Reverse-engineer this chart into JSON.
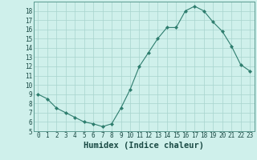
{
  "xlabel": "Humidex (Indice chaleur)",
  "x": [
    0,
    1,
    2,
    3,
    4,
    5,
    6,
    7,
    8,
    9,
    10,
    11,
    12,
    13,
    14,
    15,
    16,
    17,
    18,
    19,
    20,
    21,
    22,
    23
  ],
  "y": [
    9.0,
    8.5,
    7.5,
    7.0,
    6.5,
    6.0,
    5.8,
    5.5,
    5.8,
    7.5,
    9.5,
    12.0,
    13.5,
    15.0,
    16.2,
    16.2,
    18.0,
    18.5,
    18.0,
    16.8,
    15.8,
    14.2,
    12.2,
    11.5
  ],
  "line_color": "#2e7d6e",
  "marker": "D",
  "markersize": 2.0,
  "linewidth": 0.8,
  "bg_color": "#cff0eb",
  "grid_color": "#a8d4ce",
  "ylim": [
    5,
    19
  ],
  "xlim": [
    -0.5,
    23.5
  ],
  "yticks": [
    5,
    6,
    7,
    8,
    9,
    10,
    11,
    12,
    13,
    14,
    15,
    16,
    17,
    18
  ],
  "xticks": [
    0,
    1,
    2,
    3,
    4,
    5,
    6,
    7,
    8,
    9,
    10,
    11,
    12,
    13,
    14,
    15,
    16,
    17,
    18,
    19,
    20,
    21,
    22,
    23
  ],
  "tick_label_fontsize": 5.5,
  "xlabel_fontsize": 7.5,
  "xlabel_color": "#1a4a44",
  "tick_color": "#1a4a44",
  "spine_color": "#5a9a90"
}
